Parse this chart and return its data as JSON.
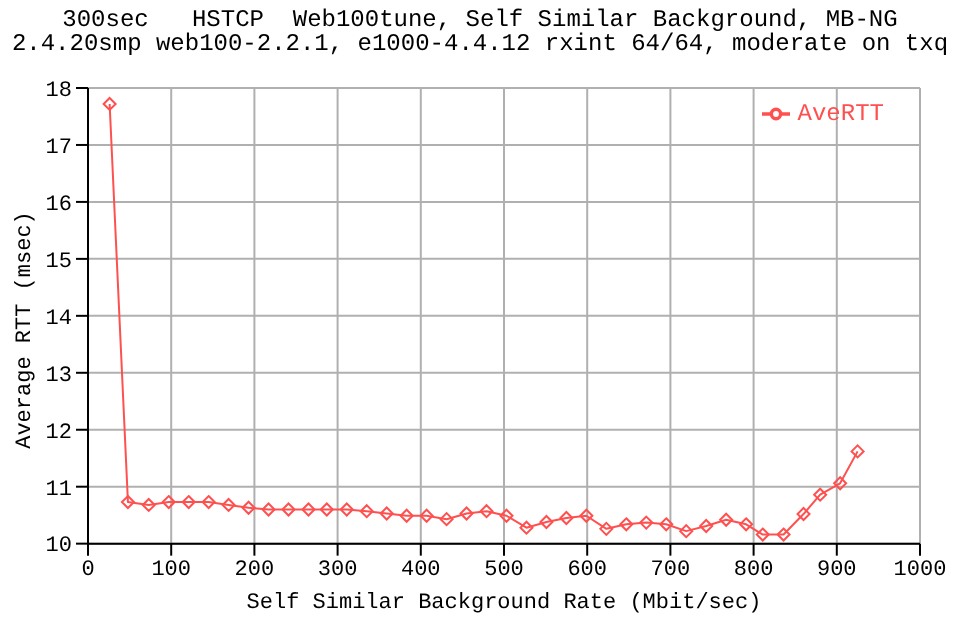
{
  "chart_data": {
    "type": "line",
    "title": "300sec   HSTCP  Web100tune, Self Similar Background, MB-NG",
    "subtitle": "2.4.20smp web100-2.2.1, e1000-4.4.12 rxint 64/64, moderate on txq",
    "xlabel": "Self Similar Background Rate (Mbit/sec)",
    "ylabel": "Average RTT (msec)",
    "x": [
      26,
      48,
      73,
      97,
      121,
      145,
      169,
      193,
      217,
      241,
      265,
      287,
      311,
      335,
      359,
      383,
      407,
      431,
      455,
      479,
      503,
      527,
      551,
      575,
      599,
      623,
      647,
      671,
      695,
      719,
      743,
      767,
      791,
      811,
      836,
      860,
      880,
      904,
      925
    ],
    "series": [
      {
        "name": "AveRTT",
        "color": "#ff5050",
        "values": [
          17.72,
          10.73,
          10.68,
          10.73,
          10.73,
          10.73,
          10.68,
          10.63,
          10.6,
          10.6,
          10.6,
          10.6,
          10.6,
          10.57,
          10.53,
          10.49,
          10.49,
          10.43,
          10.53,
          10.57,
          10.49,
          10.28,
          10.38,
          10.45,
          10.49,
          10.26,
          10.34,
          10.37,
          10.34,
          10.22,
          10.31,
          10.42,
          10.34,
          10.16,
          10.16,
          10.52,
          10.86,
          11.06,
          11.62
        ]
      }
    ],
    "xlim": [
      0,
      1000
    ],
    "xticks": [
      0,
      100,
      200,
      300,
      400,
      500,
      600,
      700,
      800,
      900,
      1000
    ],
    "ylim": [
      10,
      18
    ],
    "yticks": [
      10,
      11,
      12,
      13,
      14,
      15,
      16,
      17,
      18
    ],
    "grid": true,
    "legend": "top right",
    "marker": "diamond",
    "line_style": "solid"
  }
}
